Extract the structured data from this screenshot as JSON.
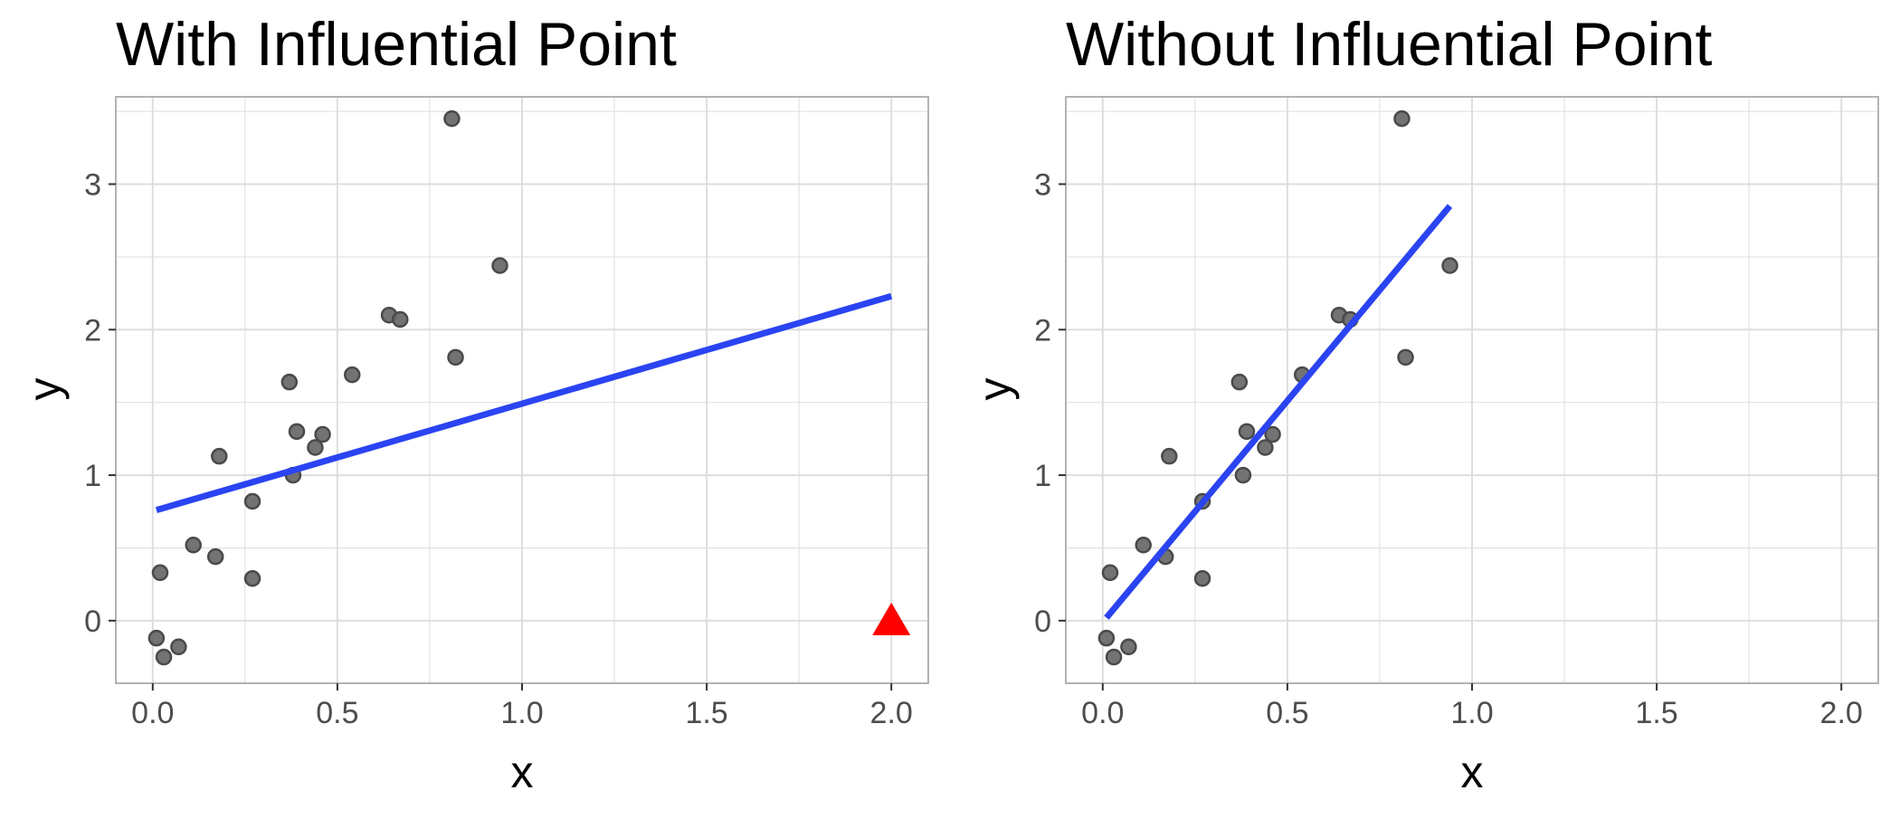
{
  "colors": {
    "point_fill": "#6b6b6b",
    "point_stroke": "#4a4a4a",
    "fit_line": "#2a44f2",
    "influential_point": "#ff0000",
    "grid": "#dedede",
    "panel_border": "#b3b3b3",
    "background": "#ffffff"
  },
  "chart_data": [
    {
      "type": "scatter",
      "title": "With Influential Point",
      "xlabel": "x",
      "ylabel": "y",
      "xlim": [
        -0.1,
        2.1
      ],
      "ylim": [
        -0.43,
        3.6
      ],
      "xticks": [
        0.0,
        0.5,
        1.0,
        1.5,
        2.0
      ],
      "xtick_labels": [
        "0.0",
        "0.5",
        "1.0",
        "1.5",
        "2.0"
      ],
      "yticks": [
        0,
        1,
        2,
        3
      ],
      "ytick_labels": [
        "0",
        "1",
        "2",
        "3"
      ],
      "grid": true,
      "legend": "none",
      "points": [
        {
          "x": 0.01,
          "y": -0.12
        },
        {
          "x": 0.03,
          "y": -0.25
        },
        {
          "x": 0.07,
          "y": -0.18
        },
        {
          "x": 0.02,
          "y": 0.33
        },
        {
          "x": 0.11,
          "y": 0.52
        },
        {
          "x": 0.17,
          "y": 0.44
        },
        {
          "x": 0.18,
          "y": 1.13
        },
        {
          "x": 0.27,
          "y": 0.29
        },
        {
          "x": 0.27,
          "y": 0.82
        },
        {
          "x": 0.37,
          "y": 1.64
        },
        {
          "x": 0.38,
          "y": 1.0
        },
        {
          "x": 0.39,
          "y": 1.3
        },
        {
          "x": 0.44,
          "y": 1.19
        },
        {
          "x": 0.46,
          "y": 1.28
        },
        {
          "x": 0.54,
          "y": 1.69
        },
        {
          "x": 0.64,
          "y": 2.1
        },
        {
          "x": 0.67,
          "y": 2.07
        },
        {
          "x": 0.81,
          "y": 3.45
        },
        {
          "x": 0.82,
          "y": 1.81
        },
        {
          "x": 0.94,
          "y": 2.44
        }
      ],
      "highlight_point": {
        "x": 2.0,
        "y": 0.0,
        "shape": "triangle"
      },
      "fit_line": {
        "x": [
          0.01,
          2.0
        ],
        "y": [
          0.76,
          2.23
        ]
      }
    },
    {
      "type": "scatter",
      "title": "Without Influential Point",
      "xlabel": "x",
      "ylabel": "y",
      "xlim": [
        -0.1,
        2.1
      ],
      "ylim": [
        -0.43,
        3.6
      ],
      "xticks": [
        0.0,
        0.5,
        1.0,
        1.5,
        2.0
      ],
      "xtick_labels": [
        "0.0",
        "0.5",
        "1.0",
        "1.5",
        "2.0"
      ],
      "yticks": [
        0,
        1,
        2,
        3
      ],
      "ytick_labels": [
        "0",
        "1",
        "2",
        "3"
      ],
      "grid": true,
      "legend": "none",
      "points": [
        {
          "x": 0.01,
          "y": -0.12
        },
        {
          "x": 0.03,
          "y": -0.25
        },
        {
          "x": 0.07,
          "y": -0.18
        },
        {
          "x": 0.02,
          "y": 0.33
        },
        {
          "x": 0.11,
          "y": 0.52
        },
        {
          "x": 0.17,
          "y": 0.44
        },
        {
          "x": 0.18,
          "y": 1.13
        },
        {
          "x": 0.27,
          "y": 0.29
        },
        {
          "x": 0.27,
          "y": 0.82
        },
        {
          "x": 0.37,
          "y": 1.64
        },
        {
          "x": 0.38,
          "y": 1.0
        },
        {
          "x": 0.39,
          "y": 1.3
        },
        {
          "x": 0.44,
          "y": 1.19
        },
        {
          "x": 0.46,
          "y": 1.28
        },
        {
          "x": 0.54,
          "y": 1.69
        },
        {
          "x": 0.64,
          "y": 2.1
        },
        {
          "x": 0.67,
          "y": 2.07
        },
        {
          "x": 0.81,
          "y": 3.45
        },
        {
          "x": 0.82,
          "y": 1.81
        },
        {
          "x": 0.94,
          "y": 2.44
        }
      ],
      "highlight_point": null,
      "fit_line": {
        "x": [
          0.01,
          0.94
        ],
        "y": [
          0.02,
          2.85
        ]
      }
    }
  ]
}
